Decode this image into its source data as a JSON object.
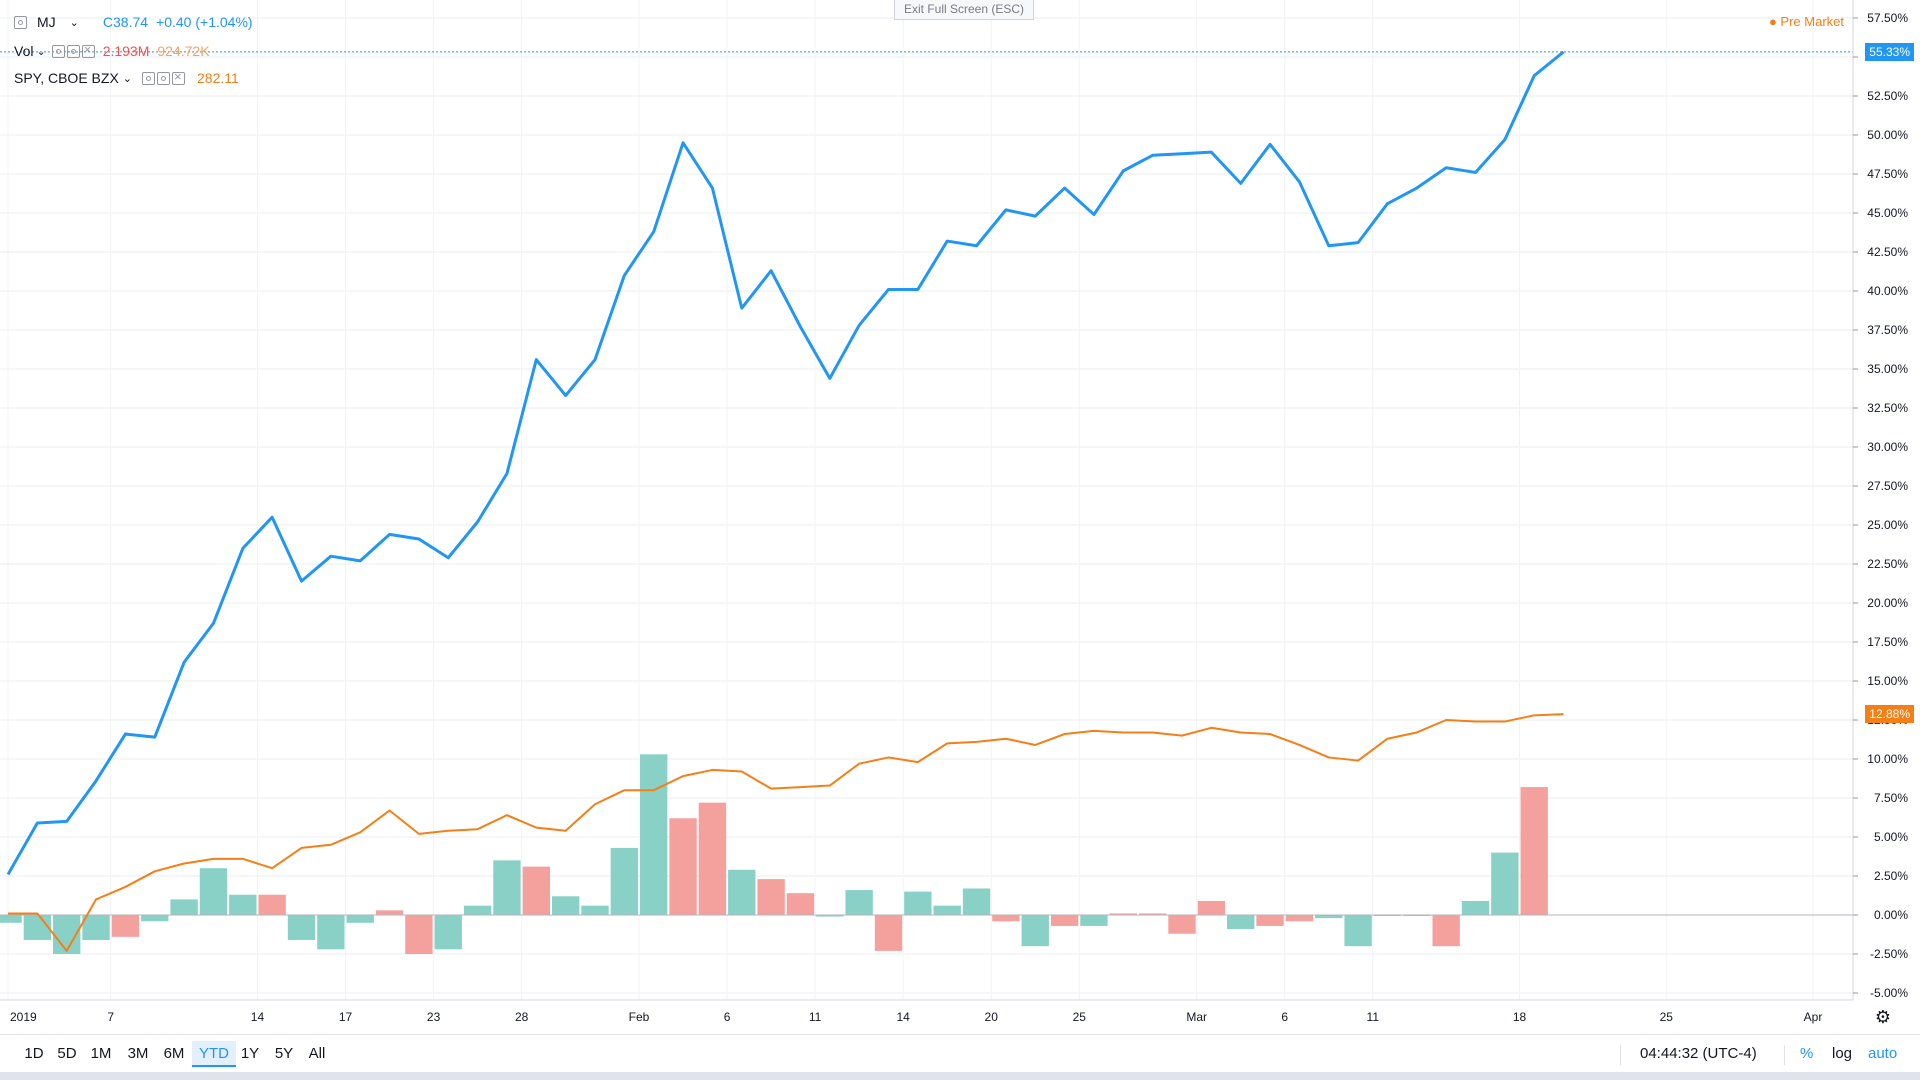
{
  "header": {
    "symbol": "MJ",
    "close_label": "C38.74",
    "change": "+0.40 (+1.04%)",
    "vol_label": "Vol",
    "vol_value": "2.193M",
    "vol_ma": "924.72K",
    "compare_label": "SPY, CBOE BZX",
    "compare_value": "282.11"
  },
  "exit_fullscreen": "Exit Full Screen (ESC)",
  "pre_market": "Pre Market",
  "bottom": {
    "ranges": [
      "1D",
      "5D",
      "1M",
      "3M",
      "6M",
      "YTD",
      "1Y",
      "5Y",
      "All"
    ],
    "active_range": "YTD",
    "clock": "04:44:32 (UTC-4)",
    "percent": "%",
    "log": "log",
    "auto": "auto"
  },
  "colors": {
    "main": "#2196f3",
    "compare": "#f57f17",
    "vol_up": "#89d0c6",
    "vol_down": "#f4a09d",
    "grid": "#e9ecf2",
    "axis_text": "#131722"
  },
  "chart_data": {
    "type": "line",
    "y_unit": "percent",
    "ylim": [
      -5.5,
      58.5
    ],
    "y_ticks": [
      "57.50%",
      "55.00%",
      "52.50%",
      "50.00%",
      "47.50%",
      "45.00%",
      "42.50%",
      "40.00%",
      "37.50%",
      "35.00%",
      "32.50%",
      "30.00%",
      "27.50%",
      "25.00%",
      "22.50%",
      "20.00%",
      "17.50%",
      "15.00%",
      "12.50%",
      "10.00%",
      "7.50%",
      "5.00%",
      "2.50%",
      "0.00%",
      "-2.50%",
      "-5.00%"
    ],
    "y_tick_values": [
      57.5,
      55,
      52.5,
      50,
      47.5,
      45,
      42.5,
      40,
      37.5,
      35,
      32.5,
      30,
      27.5,
      25,
      22.5,
      20,
      17.5,
      15,
      12.5,
      10,
      7.5,
      5,
      2.5,
      0,
      -2.5,
      -5
    ],
    "x_tick_labels": [
      {
        "label": "2019",
        "index": 0
      },
      {
        "label": "7",
        "index": 3.5
      },
      {
        "label": "14",
        "index": 8.5
      },
      {
        "label": "17",
        "index": 11.5
      },
      {
        "label": "23",
        "index": 14.5
      },
      {
        "label": "28",
        "index": 17.5
      },
      {
        "label": "Feb",
        "index": 21.5
      },
      {
        "label": "6",
        "index": 24.5
      },
      {
        "label": "11",
        "index": 27.5
      },
      {
        "label": "14",
        "index": 30.5
      },
      {
        "label": "20",
        "index": 33.5
      },
      {
        "label": "25",
        "index": 36.5
      },
      {
        "label": "Mar",
        "index": 40.5
      },
      {
        "label": "6",
        "index": 43.5
      },
      {
        "label": "11",
        "index": 46.5
      },
      {
        "label": "18",
        "index": 51.5
      },
      {
        "label": "25",
        "index": 56.5
      },
      {
        "label": "Apr",
        "index": 61.5
      }
    ],
    "x_slots": 64,
    "series": [
      {
        "name": "MJ",
        "last_label": "55.33%",
        "values": [
          2.6,
          5.9,
          6.0,
          8.6,
          11.6,
          11.4,
          16.2,
          18.7,
          23.5,
          25.5,
          21.4,
          23.0,
          22.7,
          24.4,
          24.1,
          22.9,
          25.2,
          28.3,
          35.6,
          33.3,
          35.6,
          41.0,
          43.8,
          49.5,
          46.6,
          38.9,
          41.3,
          37.7,
          34.4,
          37.8,
          40.1,
          40.1,
          43.2,
          42.9,
          45.2,
          44.8,
          46.6,
          44.9,
          47.7,
          48.7,
          48.8,
          48.9,
          46.9,
          49.4,
          47.0,
          42.9,
          43.1,
          45.6,
          46.6,
          47.9,
          47.6,
          49.7,
          53.8,
          55.33
        ]
      },
      {
        "name": "SPY, CBOE BZX",
        "last_label": "12.88%",
        "values": [
          0.1,
          0.1,
          -2.3,
          1.0,
          1.8,
          2.8,
          3.3,
          3.6,
          3.6,
          3.0,
          4.3,
          4.5,
          5.3,
          6.7,
          5.2,
          5.4,
          5.5,
          6.4,
          5.6,
          5.4,
          7.1,
          8.0,
          8.0,
          8.9,
          9.3,
          9.2,
          8.1,
          8.2,
          8.3,
          9.7,
          10.1,
          9.8,
          11.0,
          11.1,
          11.3,
          10.9,
          11.6,
          11.8,
          11.7,
          11.7,
          11.5,
          12.0,
          11.7,
          11.6,
          10.9,
          10.1,
          9.9,
          11.3,
          11.7,
          12.5,
          12.4,
          12.4,
          12.8,
          12.88
        ]
      }
    ],
    "volume_bars": {
      "name": "Vol",
      "values": [
        -0.5,
        -1.6,
        -2.5,
        -1.6,
        -1.4,
        -0.4,
        1.0,
        3.0,
        1.3,
        1.3,
        -1.6,
        -2.2,
        -0.5,
        0.3,
        -2.5,
        -2.2,
        0.6,
        3.5,
        3.1,
        1.2,
        0.6,
        4.3,
        10.3,
        6.2,
        7.2,
        2.9,
        2.3,
        1.4,
        -0.1,
        1.6,
        -2.3,
        1.5,
        0.6,
        1.7,
        -0.4,
        -2.0,
        -0.7,
        -0.7,
        0.1,
        0.1,
        -1.2,
        0.9,
        -0.9,
        -0.7,
        -0.4,
        -0.2,
        -2.0,
        0.0,
        0.0,
        -2.0,
        0.9,
        4.0,
        8.2
      ],
      "direction": [
        "up",
        "up",
        "up",
        "up",
        "down",
        "up",
        "up",
        "up",
        "up",
        "down",
        "up",
        "up",
        "up",
        "down",
        "down",
        "up",
        "up",
        "up",
        "down",
        "up",
        "up",
        "up",
        "up",
        "down",
        "down",
        "up",
        "down",
        "down",
        "up",
        "up",
        "down",
        "up",
        "up",
        "up",
        "down",
        "up",
        "down",
        "up",
        "down",
        "down",
        "down",
        "down",
        "up",
        "down",
        "down",
        "up",
        "up",
        "up",
        "down",
        "down",
        "up",
        "up",
        "down"
      ]
    }
  }
}
